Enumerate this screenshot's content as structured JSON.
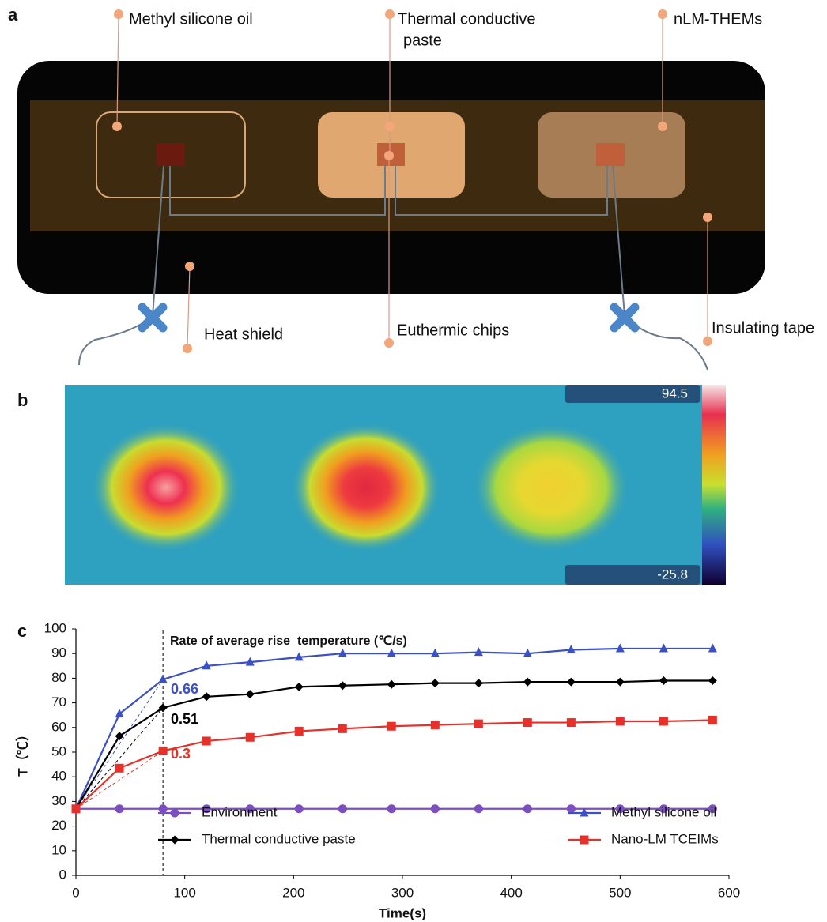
{
  "panel_labels": [
    "a",
    "b",
    "c"
  ],
  "diagram": {
    "labels": [
      "Methyl silicone oil",
      "Thermal conductive",
      "paste",
      "nLM-THEMs",
      "Heat shield",
      "Euthermic chips",
      "Insulating tape"
    ]
  },
  "thermal_image": {
    "scale_max": 94.5,
    "scale_min": -25.8
  },
  "chart_data": {
    "type": "line",
    "annotation": "Rate of average rise  temperature (℃/s)",
    "xlabel": "Time(s)",
    "ylabel": "T（℃）",
    "x": [
      0,
      40,
      80,
      120,
      160,
      205,
      245,
      290,
      330,
      370,
      415,
      455,
      500,
      540,
      585
    ],
    "series": [
      {
        "name": "Environment",
        "color": "#7b4fc0",
        "marker": "circle",
        "values": [
          27,
          27,
          27,
          27,
          27,
          27,
          27,
          27,
          27,
          27,
          27,
          27,
          27,
          27,
          27
        ]
      },
      {
        "name": "Methyl silicone oil",
        "color": "#3b4fc6",
        "marker": "triangle",
        "rate": 0.66,
        "values": [
          27,
          65.5,
          79.5,
          85,
          86.5,
          88.5,
          90,
          90,
          90,
          90.5,
          90,
          91.5,
          92,
          92,
          92
        ]
      },
      {
        "name": "Thermal conductive paste",
        "color": "#000000",
        "marker": "diamond",
        "rate": 0.51,
        "values": [
          27,
          56.5,
          68,
          72.5,
          73.5,
          76.5,
          77,
          77.5,
          78,
          78,
          78.5,
          78.5,
          78.5,
          79,
          79
        ]
      },
      {
        "name": "Nano-LM TCEIMs",
        "color": "#e8302a",
        "marker": "square",
        "rate": 0.3,
        "values": [
          27,
          43.5,
          50.5,
          54.5,
          56,
          58.5,
          59.5,
          60.5,
          61,
          61.5,
          62,
          62,
          62.5,
          62.5,
          63
        ]
      }
    ],
    "xlim": [
      0,
      600
    ],
    "ylim": [
      0,
      100
    ],
    "xticks": [
      0,
      100,
      200,
      300,
      400,
      500,
      600
    ],
    "yticks": [
      0,
      10,
      20,
      30,
      40,
      50,
      60,
      70,
      80,
      90,
      100
    ],
    "grid": false
  }
}
